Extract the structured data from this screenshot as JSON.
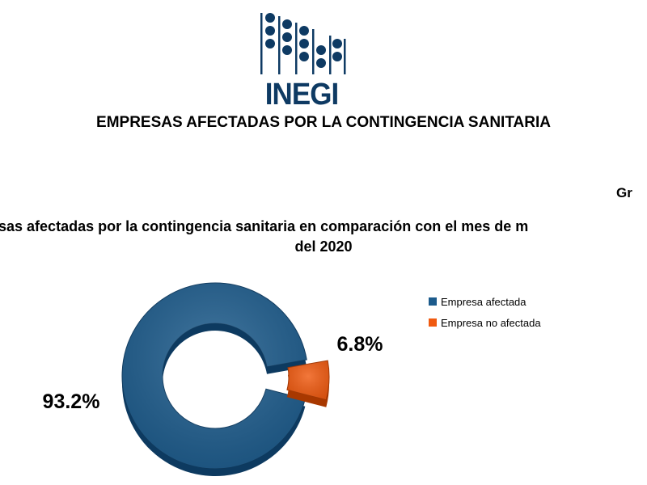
{
  "logo": {
    "text": "INEGI",
    "color": "#0e3a63"
  },
  "document_title": "EMPRESAS AFECTADAS POR LA CONTINGENCIA SANITARIA",
  "graph_label": "Gr",
  "chart_data": {
    "type": "pie",
    "style": "donut",
    "title_line1": "esas afectadas por la contingencia sanitaria en comparación con el mes de m",
    "title_line2": "del 2020",
    "legend_position": "right",
    "slices": [
      {
        "name": "Empresa afectada",
        "value": 93.2,
        "label": "93.2%",
        "color": "#1c5b8c",
        "color_dark": "#0d3a60"
      },
      {
        "name": "Empresa no afectada",
        "value": 6.8,
        "label": "6.8%",
        "color": "#f05a10",
        "color_dark": "#a83800"
      }
    ]
  }
}
